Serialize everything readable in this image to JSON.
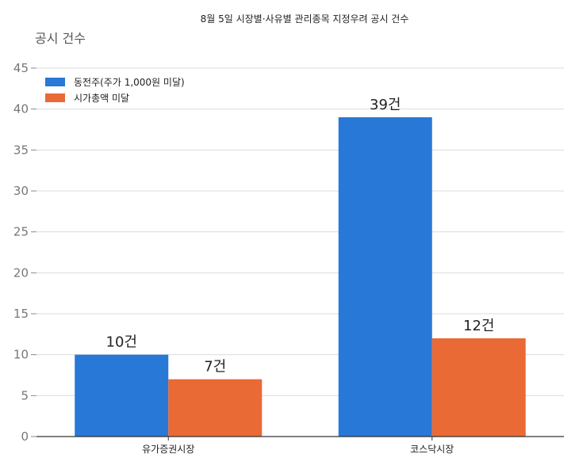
{
  "chart_data": {
    "type": "bar",
    "title": "8월 5일 시장별·사유별 관리종목 지정우려 공시 건수",
    "ylabel": "공시 건수",
    "xlabel": "",
    "categories": [
      "유가증권시장",
      "코스닥시장"
    ],
    "series": [
      {
        "name": "동전주(주가 1,000원 미달)",
        "values": [
          10,
          39
        ],
        "labels": [
          "10건",
          "39건"
        ],
        "color": "#2878d7"
      },
      {
        "name": "시가총액 미달",
        "values": [
          7,
          12
        ],
        "labels": [
          "7건",
          "12건"
        ],
        "color": "#ea6a35"
      }
    ],
    "ylim": [
      0,
      45
    ],
    "yticks": [
      0,
      5,
      10,
      15,
      20,
      25,
      30,
      35,
      40,
      45
    ],
    "grid": true,
    "legend_position": "top-left"
  }
}
